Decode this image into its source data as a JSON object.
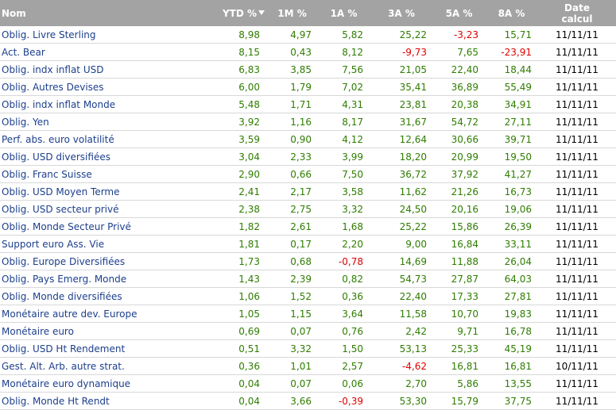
{
  "table": {
    "header": [
      "Nom",
      "YTD %",
      "1M %",
      "1A %",
      "3A %",
      "5A %",
      "8A %",
      "Date calcul"
    ],
    "rows": [
      [
        "Oblig. Livre Sterling",
        "8,98",
        "4,97",
        "5,82",
        "25,22",
        "-3,23",
        "15,71",
        "11/11/11"
      ],
      [
        "Act. Bear",
        "8,15",
        "0,43",
        "8,12",
        "-9,73",
        "7,65",
        "-23,91",
        "11/11/11"
      ],
      [
        "Oblig. indx inflat USD",
        "6,83",
        "3,85",
        "7,56",
        "21,05",
        "22,40",
        "18,44",
        "11/11/11"
      ],
      [
        "Oblig. Autres Devises",
        "6,00",
        "1,79",
        "7,02",
        "35,41",
        "36,89",
        "55,49",
        "11/11/11"
      ],
      [
        "Oblig. indx inflat Monde",
        "5,48",
        "1,71",
        "4,31",
        "23,81",
        "20,38",
        "34,91",
        "11/11/11"
      ],
      [
        "Oblig. Yen",
        "3,92",
        "1,16",
        "8,17",
        "31,67",
        "54,72",
        "27,11",
        "11/11/11"
      ],
      [
        "Perf. abs. euro volatilité",
        "3,59",
        "0,90",
        "4,12",
        "12,64",
        "30,66",
        "39,71",
        "11/11/11"
      ],
      [
        "Oblig. USD diversifiées",
        "3,04",
        "2,33",
        "3,99",
        "18,20",
        "20,99",
        "19,50",
        "11/11/11"
      ],
      [
        "Oblig. Franc Suisse",
        "2,90",
        "0,66",
        "7,50",
        "36,72",
        "37,92",
        "41,27",
        "11/11/11"
      ],
      [
        "Oblig. USD Moyen Terme",
        "2,41",
        "2,17",
        "3,58",
        "11,62",
        "21,26",
        "16,73",
        "11/11/11"
      ],
      [
        "Oblig. USD secteur privé",
        "2,38",
        "2,75",
        "3,32",
        "24,50",
        "20,16",
        "19,06",
        "11/11/11"
      ],
      [
        "Oblig. Monde Secteur Privé",
        "1,82",
        "2,61",
        "1,68",
        "25,22",
        "15,86",
        "26,39",
        "11/11/11"
      ],
      [
        "Support euro Ass. Vie",
        "1,81",
        "0,17",
        "2,20",
        "9,00",
        "16,84",
        "33,11",
        "11/11/11"
      ],
      [
        "Oblig. Europe Diversifiées",
        "1,73",
        "0,68",
        "-0,78",
        "14,69",
        "11,88",
        "26,04",
        "11/11/11"
      ],
      [
        "Oblig. Pays Emerg. Monde",
        "1,43",
        "2,39",
        "0,82",
        "54,73",
        "27,87",
        "64,03",
        "11/11/11"
      ],
      [
        "Oblig. Monde diversifiées",
        "1,06",
        "1,52",
        "0,36",
        "22,40",
        "17,33",
        "27,81",
        "11/11/11"
      ],
      [
        "Monétaire autre dev. Europe",
        "1,05",
        "1,15",
        "3,64",
        "11,58",
        "10,70",
        "19,83",
        "11/11/11"
      ],
      [
        "Monétaire euro",
        "0,69",
        "0,07",
        "0,76",
        "2,42",
        "9,71",
        "16,78",
        "11/11/11"
      ],
      [
        "Oblig. USD Ht Rendement",
        "0,51",
        "3,32",
        "1,50",
        "53,13",
        "25,33",
        "45,19",
        "11/11/11"
      ],
      [
        "Gest. Alt. Arb. autre strat.",
        "0,36",
        "1,01",
        "2,57",
        "-4,62",
        "16,81",
        "16,81",
        "10/11/11"
      ],
      [
        "Monétaire euro dynamique",
        "0,04",
        "0,07",
        "0,06",
        "2,70",
        "5,86",
        "13,55",
        "11/11/11"
      ],
      [
        "Oblig. Monde Ht Rendt",
        "0,04",
        "3,66",
        "-0,39",
        "53,30",
        "15,79",
        "37,75",
        "11/11/11"
      ]
    ]
  }
}
